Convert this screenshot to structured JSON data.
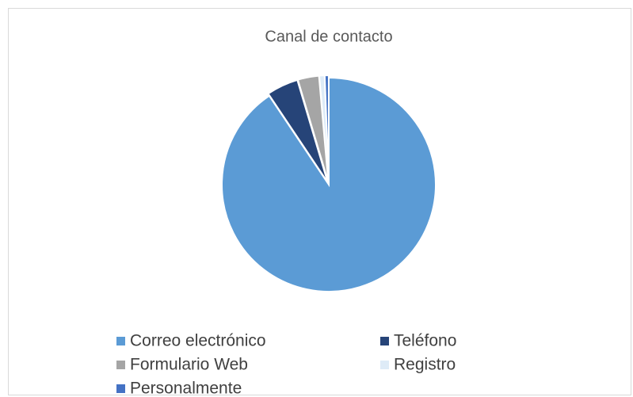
{
  "chart_data": {
    "type": "pie",
    "title": "Canal de contacto",
    "categories": [
      "Correo electrónico",
      "Teléfono",
      "Formulario Web",
      "Registro",
      "Personalmente"
    ],
    "values": [
      90.6,
      4.8,
      3.2,
      0.8,
      0.6
    ],
    "colors": [
      "#5b9bd5",
      "#264478",
      "#a5a5a5",
      "#deebf7",
      "#4472c4"
    ],
    "legend": "bottom"
  }
}
